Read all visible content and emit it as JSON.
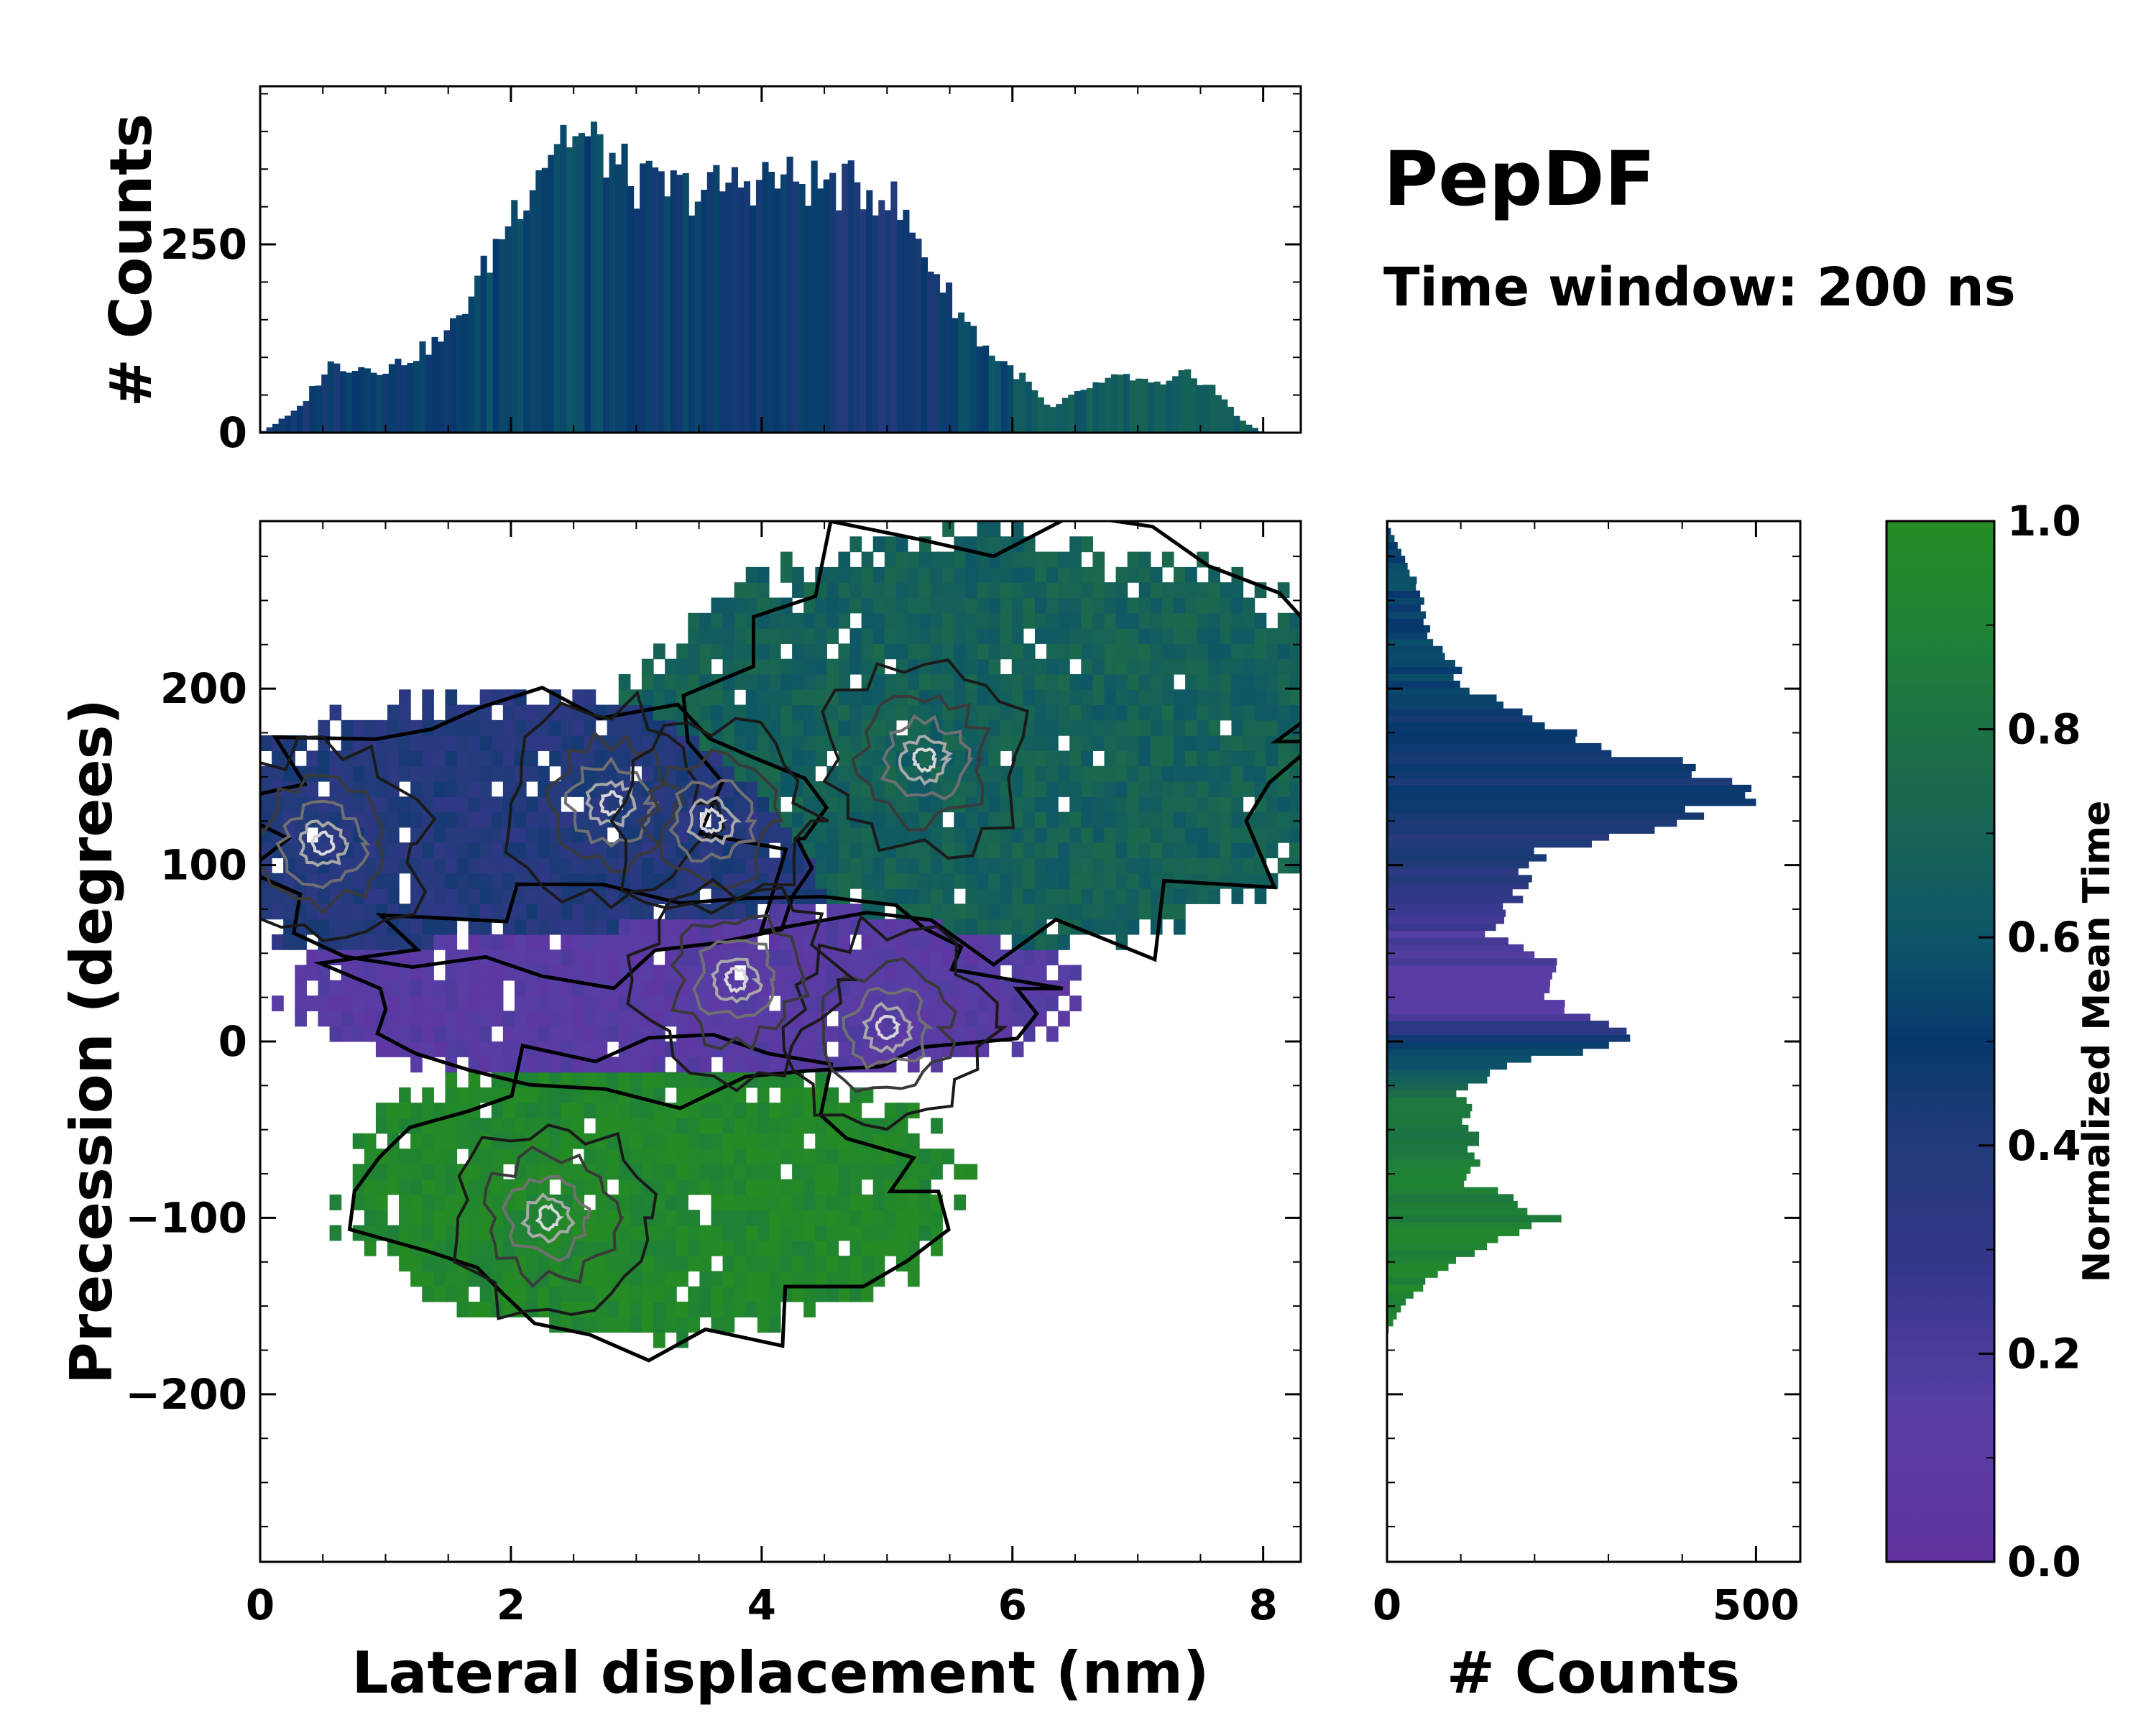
{
  "chart_data": {
    "type": "heatmap",
    "title": "PepDF",
    "subtitle": "Time window: 200 ns",
    "main": {
      "type": "heatmap",
      "xlabel": "Lateral displacement (nm)",
      "ylabel": "Precession (degrees)",
      "xlim": [
        0,
        8.3
      ],
      "ylim": [
        -295,
        295
      ],
      "xticks": [
        0,
        2,
        4,
        6,
        8
      ],
      "yticks": [
        -200,
        -100,
        0,
        100,
        200
      ],
      "ytick_labels": [
        "−200",
        "−100",
        "0",
        "100",
        "200"
      ],
      "color_field": "Normalized Mean Time",
      "regions": [
        {
          "name": "green basin",
          "x": [
            1.2,
            5.0
          ],
          "y": [
            -160,
            -10
          ],
          "time": 0.95
        },
        {
          "name": "purple band",
          "x": [
            0.9,
            5.8
          ],
          "y": [
            -20,
            80
          ],
          "time": 0.12
        },
        {
          "name": "blue left lobe",
          "x": [
            0.0,
            4.5
          ],
          "y": [
            40,
            190
          ],
          "time": 0.38
        },
        {
          "name": "teal upper right",
          "x": [
            3.5,
            8.2
          ],
          "y": [
            60,
            280
          ],
          "time": 0.68
        }
      ],
      "density_peaks": [
        {
          "x": 2.8,
          "y": 135
        },
        {
          "x": 3.6,
          "y": 125
        },
        {
          "x": 5.0,
          "y": 8
        },
        {
          "x": 3.8,
          "y": 35
        },
        {
          "x": 2.3,
          "y": -100
        },
        {
          "x": 0.5,
          "y": 112
        },
        {
          "x": 5.3,
          "y": 160
        }
      ]
    },
    "top_histogram": {
      "type": "bar",
      "ylabel": "# Counts",
      "ylim": [
        0,
        460
      ],
      "yticks": [
        0,
        250
      ],
      "bin_range": [
        0,
        8.3
      ],
      "bins": 170,
      "profile_points": {
        "x": [
          0.0,
          0.3,
          0.55,
          1.0,
          1.2,
          1.5,
          1.8,
          2.0,
          2.2,
          2.4,
          2.7,
          3.0,
          3.5,
          4.0,
          4.5,
          5.0,
          5.3,
          5.5,
          5.8,
          6.1,
          6.3,
          6.6,
          6.9,
          7.2,
          7.4,
          7.6,
          7.8,
          8.0,
          8.3
        ],
        "counts": [
          0,
          30,
          90,
          85,
          100,
          130,
          220,
          290,
          350,
          400,
          380,
          330,
          320,
          340,
          330,
          320,
          240,
          180,
          110,
          70,
          30,
          60,
          75,
          60,
          80,
          60,
          20,
          0,
          0
        ]
      },
      "colors": {
        "x": [
          0,
          1.5,
          2.3,
          3.0,
          4.0,
          5.0,
          5.8,
          6.3,
          8.3
        ],
        "time": [
          0.45,
          0.52,
          0.58,
          0.5,
          0.5,
          0.42,
          0.55,
          0.65,
          0.65
        ]
      }
    },
    "right_histogram": {
      "type": "bar",
      "orientation": "horizontal",
      "xlabel": "# Counts",
      "xlim": [
        0,
        560
      ],
      "xticks": [
        0,
        500
      ],
      "bin_range": [
        -295,
        295
      ],
      "profile_points": {
        "y": [
          -165,
          -150,
          -130,
          -110,
          -100,
          -95,
          -80,
          -60,
          -40,
          -25,
          -15,
          0,
          5,
          15,
          25,
          40,
          50,
          60,
          75,
          85,
          100,
          110,
          125,
          135,
          140,
          150,
          160,
          180,
          200,
          230,
          260,
          285,
          295
        ],
        "counts": [
          0,
          20,
          70,
          150,
          230,
          200,
          110,
          120,
          110,
          100,
          170,
          300,
          330,
          280,
          210,
          230,
          200,
          140,
          160,
          190,
          180,
          230,
          390,
          470,
          500,
          430,
          360,
          210,
          110,
          60,
          40,
          10,
          0
        ]
      },
      "colors": {
        "y": [
          -165,
          -100,
          -30,
          -15,
          0,
          20,
          60,
          100,
          140,
          200,
          295
        ],
        "time": [
          0.95,
          0.9,
          0.8,
          0.6,
          0.45,
          0.15,
          0.2,
          0.4,
          0.44,
          0.52,
          0.55
        ]
      }
    },
    "colorbar": {
      "label": "Normalized Mean Time",
      "range": [
        0.0,
        1.0
      ],
      "ticks": [
        "0.0",
        "0.2",
        "0.4",
        "0.6",
        "0.8",
        "1.0"
      ],
      "stops": [
        {
          "v": 0.0,
          "color": "#6233a0"
        },
        {
          "v": 0.15,
          "color": "#573ea5"
        },
        {
          "v": 0.28,
          "color": "#35378a"
        },
        {
          "v": 0.4,
          "color": "#223b7a"
        },
        {
          "v": 0.5,
          "color": "#07386d"
        },
        {
          "v": 0.6,
          "color": "#0d5668"
        },
        {
          "v": 0.75,
          "color": "#1b6a4c"
        },
        {
          "v": 0.9,
          "color": "#1f8235"
        },
        {
          "v": 1.0,
          "color": "#268b24"
        }
      ]
    }
  }
}
